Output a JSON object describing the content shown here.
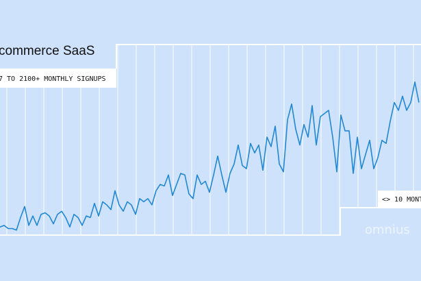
{
  "chart_data": {
    "type": "line",
    "title": "commerce SaaS",
    "subtitle": "7 TO 2100+ MONTHLY SIGNUPS",
    "annotation": "<> 10 MONT",
    "brand": "omnius",
    "color": "#1f87d6",
    "values": [
      6,
      7,
      5,
      5,
      4,
      12,
      19,
      7,
      13,
      7,
      14,
      15,
      13,
      8,
      14,
      16,
      12,
      6,
      14,
      12,
      7,
      13,
      12,
      21,
      13,
      22,
      20,
      17,
      29,
      20,
      16,
      22,
      20,
      14,
      24,
      22,
      24,
      20,
      29,
      33,
      32,
      39,
      26,
      33,
      40,
      39,
      27,
      24,
      39,
      33,
      35,
      28,
      39,
      51,
      39,
      28,
      40,
      46,
      58,
      45,
      43,
      59,
      53,
      58,
      42,
      63,
      57,
      70,
      46,
      41,
      74,
      84,
      68,
      58,
      71,
      63,
      83,
      58,
      76,
      78,
      80,
      63,
      41,
      77,
      67,
      67,
      40,
      63,
      43,
      52,
      61,
      43,
      50,
      61,
      59,
      73,
      85,
      80,
      89,
      80,
      85,
      98,
      85
    ]
  }
}
